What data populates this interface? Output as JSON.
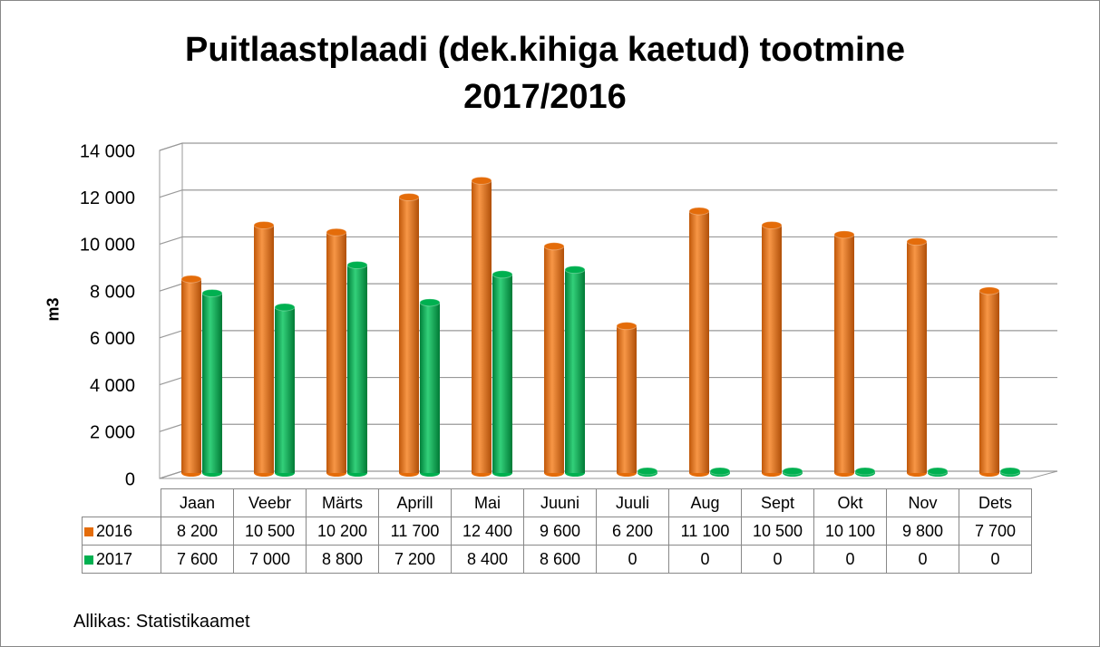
{
  "chart_data": {
    "type": "bar",
    "title": "Puitlaastplaadi (dek.kihiga kaetud) tootmine 2017/2016",
    "y_label": "m3",
    "categories": [
      "Jaan",
      "Veebr",
      "Märts",
      "Aprill",
      "Mai",
      "Juuni",
      "Juuli",
      "Aug",
      "Sept",
      "Okt",
      "Nov",
      "Dets"
    ],
    "series": [
      {
        "name": "2016",
        "color": "#e46c0a",
        "values": [
          8200,
          10500,
          10200,
          11700,
          12400,
          9600,
          6200,
          11100,
          10500,
          10100,
          9800,
          7700
        ],
        "value_labels": [
          "8 200",
          "10 500",
          "10 200",
          "11 700",
          "12 400",
          "9 600",
          "6 200",
          "11 100",
          "10 500",
          "10 100",
          "9 800",
          "7 700"
        ]
      },
      {
        "name": "2017",
        "color": "#00b050",
        "values": [
          7600,
          7000,
          8800,
          7200,
          8400,
          8600,
          0,
          0,
          0,
          0,
          0,
          0
        ],
        "value_labels": [
          "7 600",
          "7 000",
          "8 800",
          "7 200",
          "8 400",
          "8 600",
          "0",
          "0",
          "0",
          "0",
          "0",
          "0"
        ]
      }
    ],
    "ylim": [
      0,
      14000
    ],
    "yticks": [
      0,
      {
        "value": 2000,
        "label": "2 000"
      },
      {
        "value": 4000,
        "label": "4 000"
      },
      {
        "value": 6000,
        "label": "6 000"
      },
      {
        "value": 8000,
        "label": "8 000"
      },
      {
        "value": 10000,
        "label": "10 000"
      },
      {
        "value": 12000,
        "label": "12 000"
      },
      {
        "value": 14000,
        "label": "14 000"
      }
    ],
    "grid": true,
    "source": "Allikas: Statistikaamet"
  }
}
